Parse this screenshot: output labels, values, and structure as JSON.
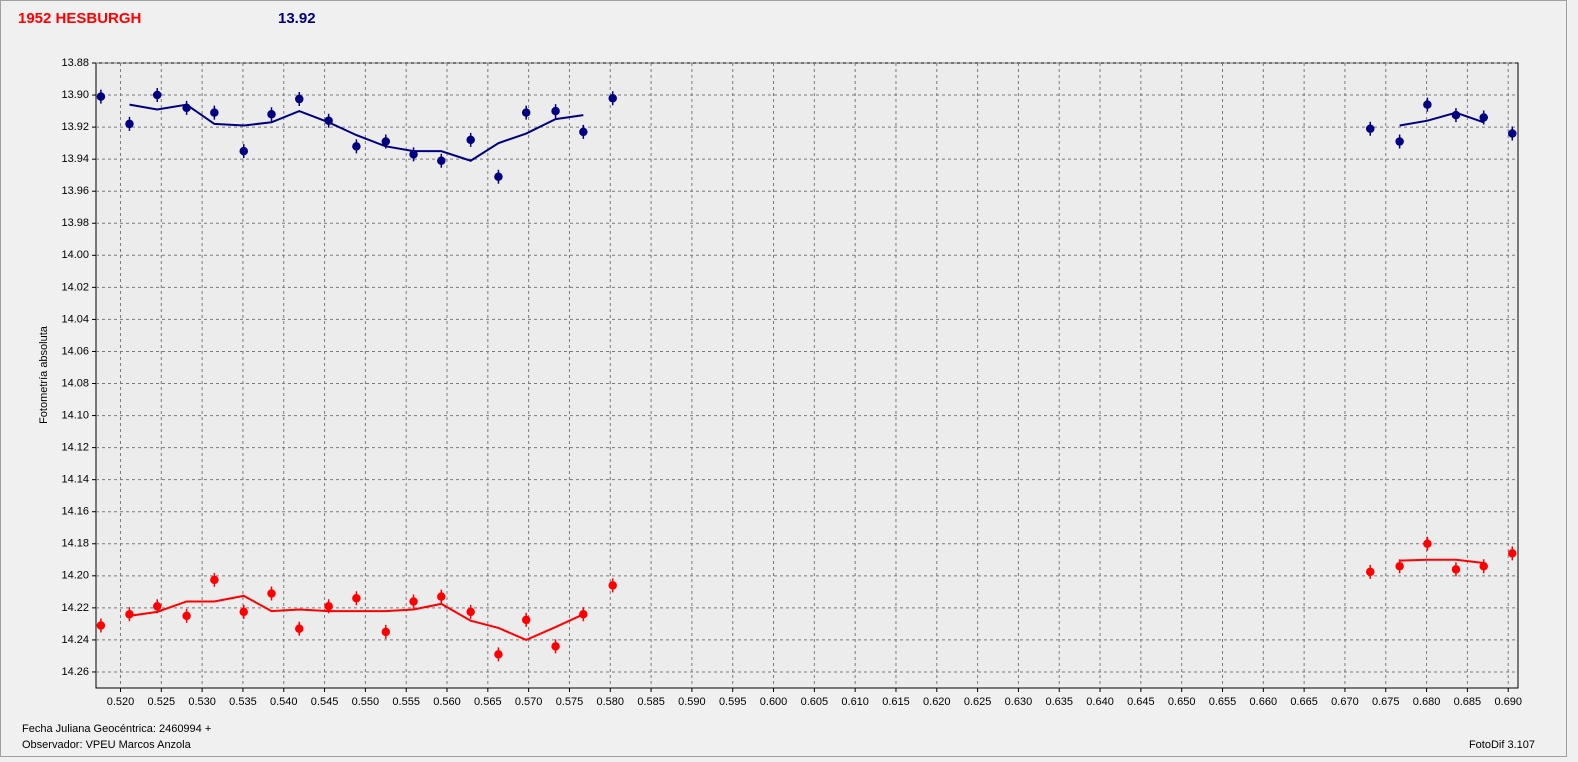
{
  "chart_data": {
    "type": "scatter",
    "title": "1952 HESBURGH",
    "title_color": "#ff0000",
    "subtitle": "13.92",
    "subtitle_color": "#000080",
    "y_label": "Fotometría absoluta",
    "x_label": "Fecha Juliana Geocéntrica: 2460994 +",
    "observer": "Observador: VPEU Marcos Anzola",
    "software": "FotoDif 3.107",
    "invert_y": true,
    "grid": true,
    "xlim": [
      0.517,
      0.6912
    ],
    "ylim": [
      13.88,
      14.27
    ],
    "xticks": [
      {
        "value": 0.52,
        "label": "0.520"
      },
      0.525,
      {
        "value": 0.53,
        "label": "0.530"
      },
      0.535,
      {
        "value": 0.54,
        "label": "0.540"
      },
      0.545,
      {
        "value": 0.55,
        "label": "0.550"
      },
      0.555,
      {
        "value": 0.56,
        "label": "0.560"
      },
      0.565,
      {
        "value": 0.57,
        "label": "0.570"
      },
      0.575,
      {
        "value": 0.58,
        "label": "0.580"
      },
      0.585,
      {
        "value": 0.59,
        "label": "0.590"
      },
      0.595,
      {
        "value": 0.6,
        "label": "0.600"
      },
      0.605,
      {
        "value": 0.61,
        "label": "0.610"
      },
      0.615,
      {
        "value": 0.62,
        "label": "0.620"
      },
      0.625,
      {
        "value": 0.63,
        "label": "0.630"
      },
      0.635,
      {
        "value": 0.64,
        "label": "0.640"
      },
      0.645,
      {
        "value": 0.65,
        "label": "0.650"
      },
      0.655,
      {
        "value": 0.66,
        "label": "0.660"
      },
      0.665,
      {
        "value": 0.67,
        "label": "0.670"
      },
      0.675,
      {
        "value": 0.68,
        "label": "0.680"
      },
      0.685,
      {
        "value": 0.69,
        "label": "0.690"
      }
    ],
    "yticks": [
      13.88,
      {
        "value": 13.9,
        "label": "13.90"
      },
      13.92,
      13.94,
      13.96,
      13.98,
      {
        "value": 14.0,
        "label": "14.00"
      },
      14.02,
      14.04,
      14.06,
      14.08,
      {
        "value": 14.1,
        "label": "14.10"
      },
      14.12,
      14.14,
      14.16,
      14.18,
      {
        "value": 14.2,
        "label": "14.20"
      },
      14.22,
      14.24,
      14.26
    ],
    "x": [
      0.5176,
      0.5211,
      0.5245,
      0.5281,
      0.5315,
      0.5351,
      0.5385,
      0.5419,
      0.5455,
      0.5489,
      0.5525,
      0.5559,
      0.5593,
      0.5629,
      0.5663,
      0.5697,
      0.5733,
      0.5767,
      0.5803,
      0.6731,
      0.6767,
      0.6801,
      0.6836,
      0.687,
      0.6905
    ],
    "series": [
      {
        "style": "points",
        "color": "#000080",
        "values": [
          13.901,
          13.918,
          13.9,
          13.908,
          13.911,
          13.935,
          13.912,
          13.9025,
          13.916,
          13.932,
          13.929,
          13.937,
          13.941,
          13.928,
          13.951,
          13.911,
          13.91,
          13.923,
          13.902,
          13.921,
          13.929,
          13.906,
          13.9125,
          13.914,
          13.924
        ]
      },
      {
        "style": "line",
        "color": "#000080",
        "values": [
          null,
          13.906,
          13.909,
          13.906,
          13.918,
          13.919,
          13.917,
          13.91,
          13.917,
          13.925,
          13.932,
          13.935,
          13.935,
          13.941,
          13.93,
          13.924,
          13.915,
          13.9125,
          null,
          null,
          13.919,
          13.916,
          13.911,
          13.917,
          null
        ]
      },
      {
        "style": "points",
        "color": "#ff0000",
        "values": [
          14.231,
          14.224,
          14.219,
          14.225,
          14.2025,
          14.2225,
          14.211,
          14.233,
          14.219,
          14.214,
          14.235,
          14.216,
          14.213,
          14.2225,
          14.249,
          14.2275,
          14.244,
          14.224,
          14.206,
          14.1975,
          14.194,
          14.18,
          14.196,
          14.194,
          14.186
        ]
      },
      {
        "style": "line",
        "color": "#ff0000",
        "values": [
          null,
          14.225,
          14.2225,
          14.216,
          14.216,
          14.2125,
          14.222,
          14.221,
          14.222,
          14.222,
          14.222,
          14.221,
          14.2175,
          14.228,
          14.2325,
          14.24,
          14.232,
          14.224,
          null,
          null,
          14.1905,
          14.19,
          14.19,
          14.192,
          null
        ]
      }
    ]
  }
}
